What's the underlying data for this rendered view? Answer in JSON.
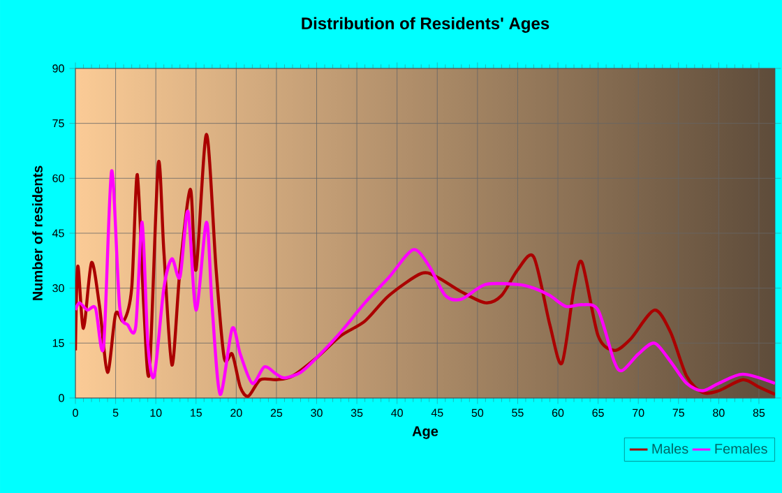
{
  "chart_data": {
    "type": "line",
    "title": "Distribution of Residents' Ages",
    "xlabel": "Age",
    "ylabel": "Number of residents",
    "xlim": [
      0,
      87
    ],
    "xticks": [
      0,
      5,
      10,
      15,
      20,
      25,
      30,
      35,
      40,
      45,
      50,
      55,
      60,
      65,
      70,
      75,
      80,
      85
    ],
    "ylim": [
      0,
      90
    ],
    "yticks": [
      0,
      15,
      30,
      45,
      60,
      75,
      90
    ],
    "grid": true,
    "legend": "bottom right",
    "marker": "none",
    "line_style": "solid",
    "series": [
      {
        "name": "Males",
        "color": "#aa0000",
        "x": [
          0,
          0.3,
          1,
          2,
          3,
          4,
          5,
          6,
          7,
          7.7,
          8.5,
          9.2,
          10.3,
          11,
          12,
          13,
          14.3,
          15,
          16.3,
          17.5,
          18.5,
          19.5,
          20.5,
          21.5,
          23,
          25,
          27,
          30,
          33,
          36,
          39,
          43,
          45,
          48,
          51,
          53,
          55,
          57,
          59,
          60.5,
          62,
          63,
          65,
          67,
          69,
          72,
          74,
          76,
          78,
          80,
          83,
          85,
          87
        ],
        "values": [
          13,
          36,
          19,
          37,
          25,
          7,
          23,
          21,
          30,
          61,
          25,
          7,
          64,
          40,
          9,
          35,
          57,
          35,
          72,
          35,
          11,
          12,
          3,
          0.5,
          5,
          5,
          6,
          11,
          17,
          21,
          28,
          34,
          33,
          29,
          26,
          28,
          35,
          38.5,
          20,
          9.5,
          30,
          37,
          17,
          13,
          16,
          24,
          18,
          6,
          1.5,
          2,
          5,
          3,
          1
        ]
      },
      {
        "name": "Females",
        "color": "#ff00ff",
        "x": [
          0,
          0.5,
          1.5,
          2.5,
          3.5,
          4.5,
          5.5,
          6.5,
          7.5,
          8.3,
          9,
          9.8,
          11,
          12,
          13,
          14,
          15,
          16.3,
          17,
          18,
          19.5,
          20.5,
          22,
          23.5,
          25,
          26,
          28,
          30,
          33,
          36,
          39,
          42,
          44,
          46,
          48,
          51,
          55,
          57,
          59,
          61,
          63,
          65,
          67,
          68,
          70,
          72,
          74,
          76,
          78,
          80,
          83,
          87
        ],
        "values": [
          24,
          26,
          24,
          24.5,
          14,
          62,
          25,
          20,
          19.5,
          48,
          15,
          6,
          30,
          38,
          33,
          51,
          24,
          48,
          25,
          1,
          19,
          12,
          4,
          8.5,
          6.5,
          5.5,
          7,
          11,
          18,
          26,
          33,
          40.5,
          36,
          28,
          27,
          31,
          31,
          30,
          28,
          25,
          25.5,
          24,
          10,
          7.5,
          12,
          15,
          10,
          4,
          2,
          4,
          6.5,
          4
        ]
      }
    ]
  }
}
